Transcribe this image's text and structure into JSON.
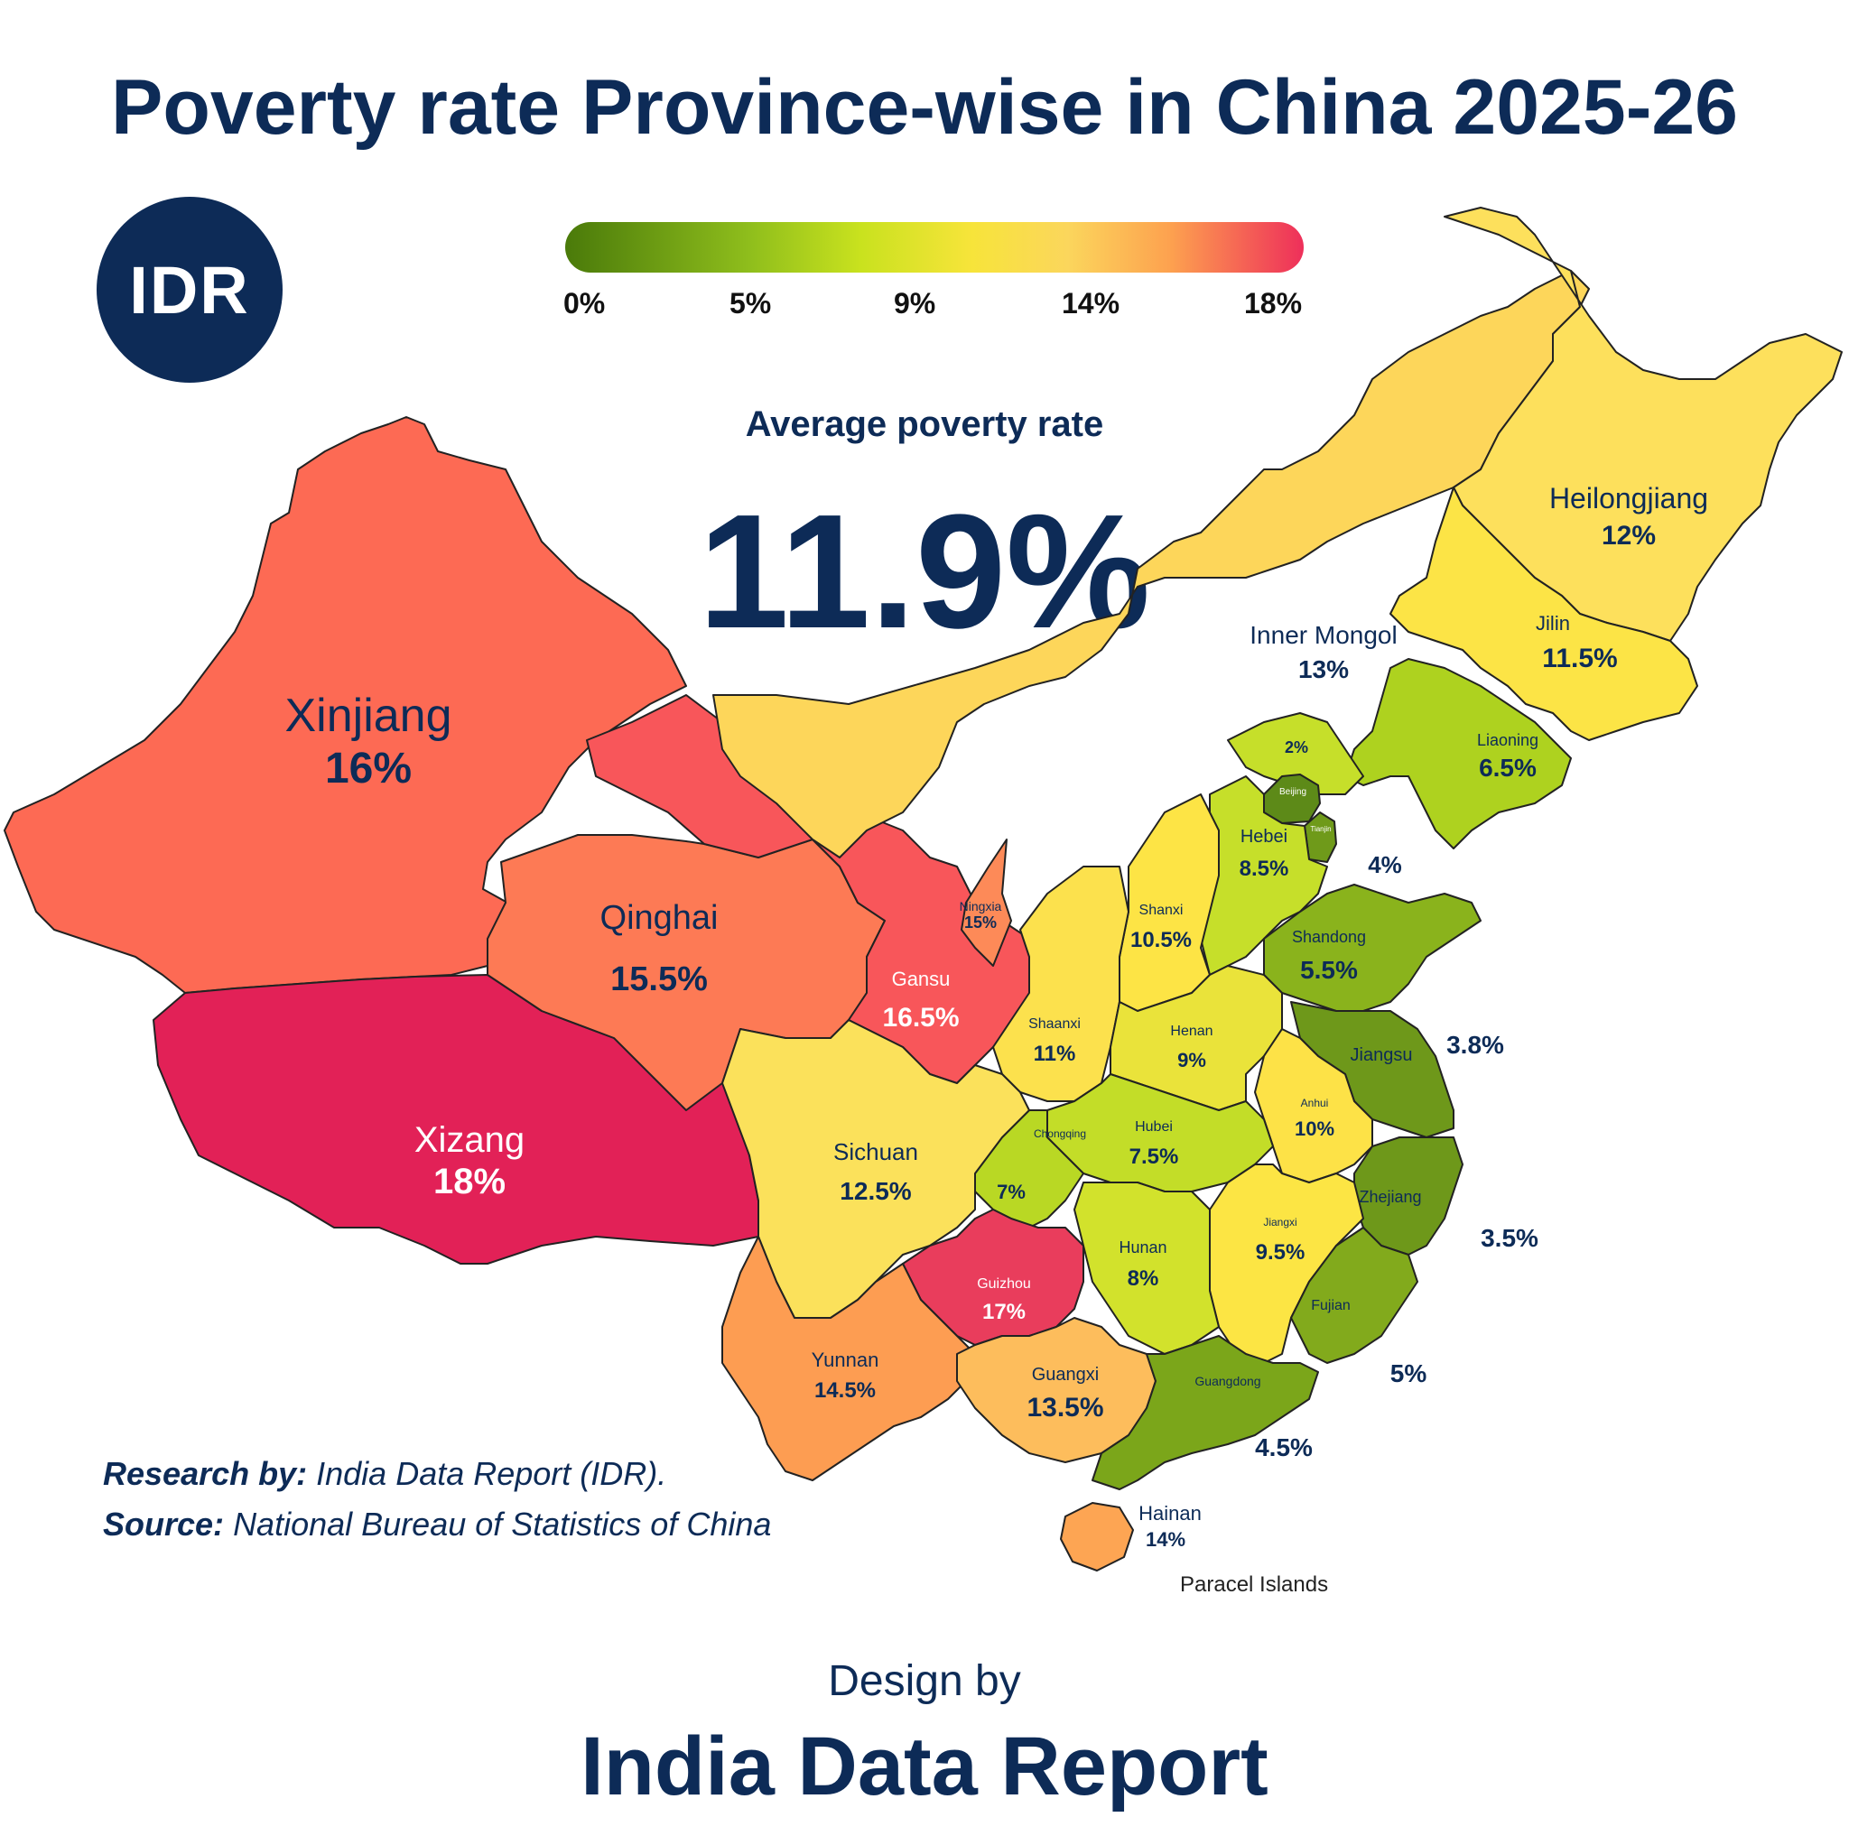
{
  "title": "Poverty rate Province-wise in China 2025-26",
  "logo": {
    "text": "IDR"
  },
  "legend": {
    "ticks": [
      "0%",
      "5%",
      "9%",
      "14%",
      "18%"
    ],
    "colors": [
      "#4a7a0a",
      "#8fbe1c",
      "#c9e21e",
      "#f7e43a",
      "#fbd65c",
      "#fda14f",
      "#ee2f5a"
    ]
  },
  "average": {
    "label": "Average poverty rate",
    "value": "11.9%"
  },
  "provinces": [
    {
      "name": "Xinjiang",
      "value": "16%",
      "rate": 16,
      "color": "#fd6a54"
    },
    {
      "name": "Xizang",
      "value": "18%",
      "rate": 18,
      "color": "#e22157"
    },
    {
      "name": "Qinghai",
      "value": "15.5%",
      "rate": 15.5,
      "color": "#fd7a55"
    },
    {
      "name": "Gansu",
      "value": "16.5%",
      "rate": 16.5,
      "color": "#f8565a"
    },
    {
      "name": "Ningxia",
      "value": "15%",
      "rate": 15,
      "color": "#fd8a58"
    },
    {
      "name": "Inner Mongol",
      "value": "13%",
      "rate": 13,
      "color": "#fdd65a"
    },
    {
      "name": "Heilongjiang",
      "value": "12%",
      "rate": 12,
      "color": "#fde05c"
    },
    {
      "name": "Jilin",
      "value": "11.5%",
      "rate": 11.5,
      "color": "#fce446"
    },
    {
      "name": "Liaoning",
      "value": "6.5%",
      "rate": 6.5,
      "color": "#aed21f"
    },
    {
      "name": "",
      "value": "2%",
      "rate": 2,
      "color": "#c6df2a"
    },
    {
      "name": "Beijing",
      "value": "",
      "rate": 2,
      "color": "#5d8a18"
    },
    {
      "name": "Tianjin",
      "value": "",
      "rate": 4,
      "color": "#6f9a1a"
    },
    {
      "name": "Hebei",
      "value": "8.5%",
      "rate": 8.5,
      "color": "#c6df2a"
    },
    {
      "name": "",
      "value": "4%",
      "rate": 4,
      "color": "#6f9a1a"
    },
    {
      "name": "Shanxi",
      "value": "10.5%",
      "rate": 10.5,
      "color": "#fde445"
    },
    {
      "name": "Shandong",
      "value": "5.5%",
      "rate": 5.5,
      "color": "#8ab31c"
    },
    {
      "name": "Shaanxi",
      "value": "11%",
      "rate": 11,
      "color": "#fce14d"
    },
    {
      "name": "Henan",
      "value": "9%",
      "rate": 9,
      "color": "#eae33a"
    },
    {
      "name": "Jiangsu",
      "value": "",
      "rate": 3.8,
      "color": "#6e981a"
    },
    {
      "name": "",
      "value": "3.8%",
      "rate": 3.8,
      "color": "#6e981a"
    },
    {
      "name": "Anhui",
      "value": "10%",
      "rate": 10,
      "color": "#fde247"
    },
    {
      "name": "Hubei",
      "value": "7.5%",
      "rate": 7.5,
      "color": "#c3dd28"
    },
    {
      "name": "Chongqing",
      "value": "7%",
      "rate": 7,
      "color": "#b9d824"
    },
    {
      "name": "Sichuan",
      "value": "12.5%",
      "rate": 12.5,
      "color": "#fbe15b"
    },
    {
      "name": "Zhejiang",
      "value": "",
      "rate": 3.5,
      "color": "#6e981a"
    },
    {
      "name": "",
      "value": "3.5%",
      "rate": 3.5,
      "color": "#6e981a"
    },
    {
      "name": "Jiangxi",
      "value": "9.5%",
      "rate": 9.5,
      "color": "#fce544"
    },
    {
      "name": "Hunan",
      "value": "8%",
      "rate": 8,
      "color": "#d2e22c"
    },
    {
      "name": "Guizhou",
      "value": "17%",
      "rate": 17,
      "color": "#e93d5c"
    },
    {
      "name": "Fujian",
      "value": "",
      "rate": 5,
      "color": "#82aa1c"
    },
    {
      "name": "",
      "value": "5%",
      "rate": 5,
      "color": "#82aa1c"
    },
    {
      "name": "Yunnan",
      "value": "14.5%",
      "rate": 14.5,
      "color": "#fd9d52"
    },
    {
      "name": "Guangxi",
      "value": "13.5%",
      "rate": 13.5,
      "color": "#fdbd5c"
    },
    {
      "name": "Guangdong",
      "value": "",
      "rate": 4.5,
      "color": "#7ba61a"
    },
    {
      "name": "",
      "value": "4.5%",
      "rate": 4.5,
      "color": "#7ba61a"
    },
    {
      "name": "Hainan",
      "value": "14%",
      "rate": 14,
      "color": "#fda553"
    }
  ],
  "map_note": "Paracel Islands",
  "credits": {
    "research_label": "Research by:",
    "research_value": "India Data Report (IDR).",
    "source_label": "Source:",
    "source_value": "National Bureau of Statistics of China"
  },
  "footer": {
    "design_by": "Design by",
    "brand": "India Data Report"
  }
}
